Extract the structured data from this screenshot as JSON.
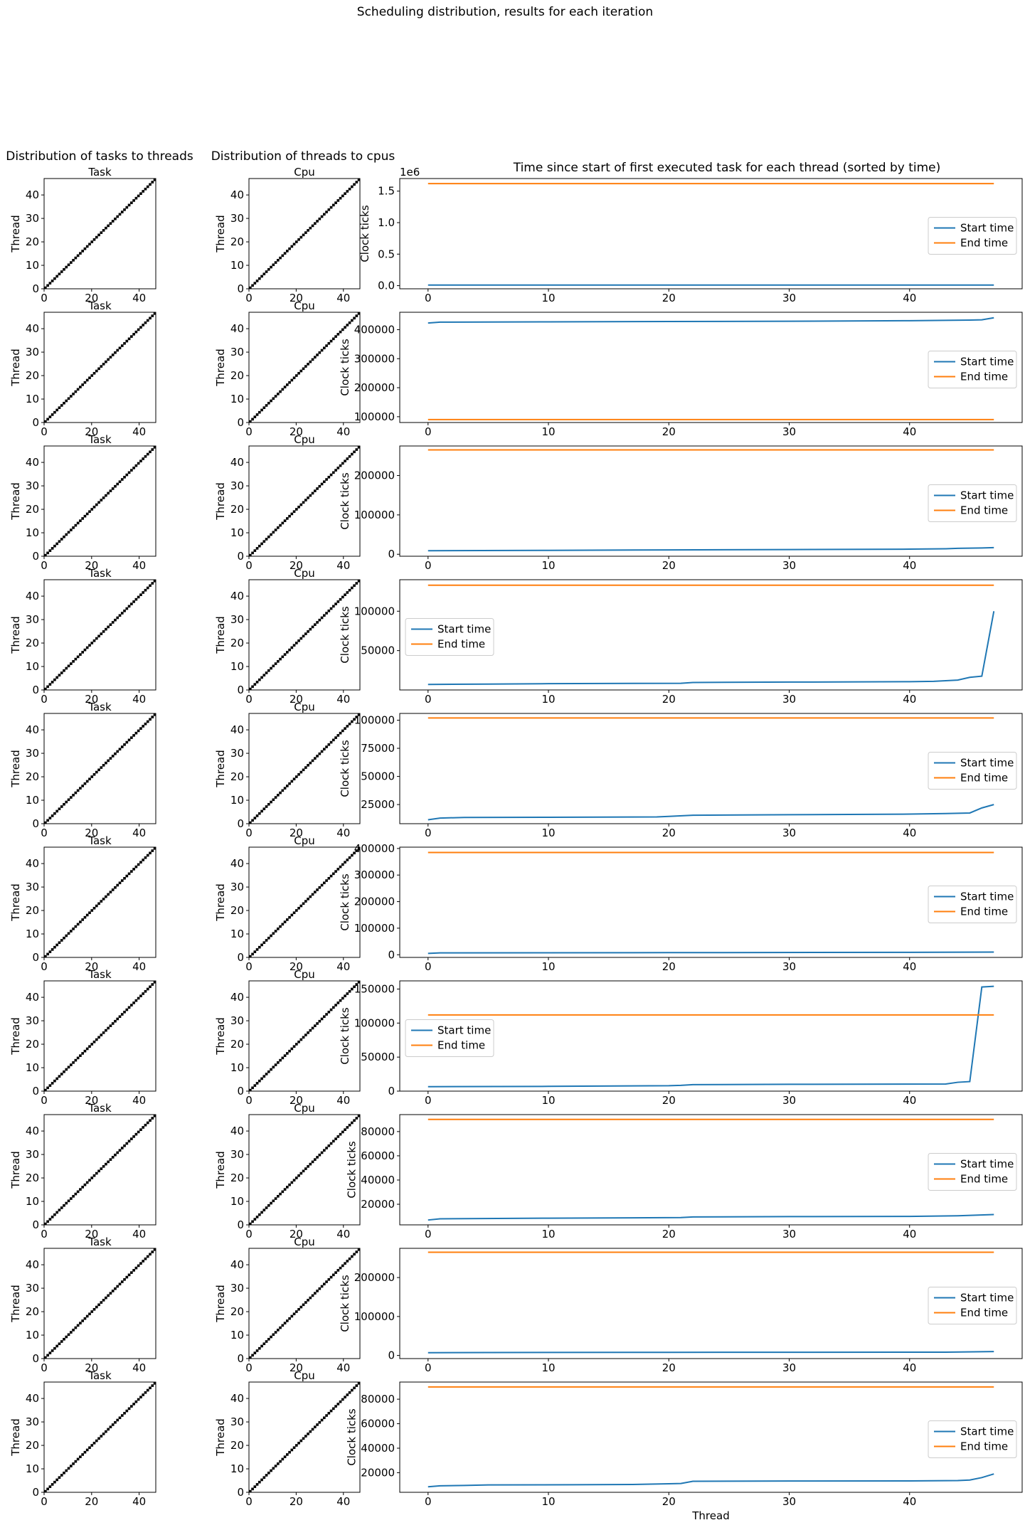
{
  "title": "Scheduling distribution, results for each iteration",
  "column_titles": [
    "Distribution of tasks to threads",
    "Distribution of threads to cpus",
    "Time since start of first executed task for each thread (sorted by time)"
  ],
  "colors": {
    "start": "#1f77b4",
    "end": "#ff7f0e",
    "matrix": "#000000"
  },
  "chart_data": [
    {
      "type": "heatmap",
      "panel": "task-to-thread",
      "title": "Task",
      "ylabel": "Thread",
      "xlim": [
        0,
        47
      ],
      "ylim": [
        0,
        47
      ],
      "xticks": [
        "0",
        "20",
        "40"
      ],
      "yticks": [
        "0",
        "10",
        "20",
        "30",
        "40"
      ],
      "pattern": "identity",
      "rows": 10
    },
    {
      "type": "heatmap",
      "panel": "thread-to-cpu",
      "title": "Cpu",
      "ylabel": "Thread",
      "xlim": [
        0,
        47
      ],
      "ylim": [
        0,
        47
      ],
      "xticks": [
        "0",
        "20",
        "40"
      ],
      "yticks": [
        "0",
        "10",
        "20",
        "30",
        "40"
      ],
      "pattern": "identity",
      "rows": 10
    },
    {
      "type": "line",
      "panel": "thread-times",
      "xlabel": "Thread",
      "ylabel": "Clock ticks",
      "xlim": [
        0,
        47
      ],
      "xticks": [
        "0",
        "10",
        "20",
        "30",
        "40"
      ],
      "rows": [
        {
          "ylim": [
            -50000,
            1700000
          ],
          "yticks": [
            0,
            500000,
            1000000,
            1500000
          ],
          "ytick_labels": [
            "0.0",
            "0.5",
            "1.0",
            "1.5"
          ],
          "offset": "1e6",
          "legend": "center right",
          "series": [
            {
              "name": "Start time",
              "points": [
                [
                  0,
                  10000
                ],
                [
                  47,
                  10000
                ]
              ]
            },
            {
              "name": "End time",
              "points": [
                [
                  0,
                  1620000
                ],
                [
                  47,
                  1620000
                ]
              ]
            }
          ]
        },
        {
          "ylim": [
            80000,
            460000
          ],
          "yticks": [
            100000,
            200000,
            300000,
            400000
          ],
          "ytick_labels": [
            "100000",
            "200000",
            "300000",
            "400000"
          ],
          "legend": "center right",
          "series": [
            {
              "name": "Start time",
              "points": [
                [
                  0,
                  423000
                ],
                [
                  1,
                  426000
                ],
                [
                  10,
                  427000
                ],
                [
                  20,
                  428000
                ],
                [
                  30,
                  429000
                ],
                [
                  40,
                  431000
                ],
                [
                  45,
                  433000
                ],
                [
                  46,
                  434000
                ],
                [
                  47,
                  441000
                ]
              ]
            },
            {
              "name": "End time",
              "points": [
                [
                  0,
                  90000
                ],
                [
                  47,
                  90000
                ]
              ]
            }
          ]
        },
        {
          "ylim": [
            -5000,
            275000
          ],
          "yticks": [
            0,
            100000,
            200000
          ],
          "ytick_labels": [
            "0",
            "100000",
            "200000"
          ],
          "legend": "center right",
          "series": [
            {
              "name": "Start time",
              "points": [
                [
                  0,
                  9000
                ],
                [
                  10,
                  10000
                ],
                [
                  20,
                  11000
                ],
                [
                  30,
                  12000
                ],
                [
                  40,
                  13000
                ],
                [
                  43,
                  14000
                ],
                [
                  44,
                  15000
                ],
                [
                  46,
                  16000
                ],
                [
                  47,
                  17000
                ]
              ]
            },
            {
              "name": "End time",
              "points": [
                [
                  0,
                  265000
                ],
                [
                  47,
                  265000
                ]
              ]
            }
          ]
        },
        {
          "ylim": [
            0,
            140000
          ],
          "yticks": [
            50000,
            100000
          ],
          "ytick_labels": [
            "50000",
            "100000"
          ],
          "legend": "center left",
          "series": [
            {
              "name": "Start time",
              "points": [
                [
                  0,
                  7000
                ],
                [
                  5,
                  7500
                ],
                [
                  10,
                  8000
                ],
                [
                  21,
                  8500
                ],
                [
                  22,
                  9500
                ],
                [
                  30,
                  10000
                ],
                [
                  40,
                  10500
                ],
                [
                  42,
                  11000
                ],
                [
                  44,
                  12500
                ],
                [
                  45,
                  16000
                ],
                [
                  46,
                  17500
                ],
                [
                  47,
                  100000
                ]
              ]
            },
            {
              "name": "End time",
              "points": [
                [
                  0,
                  133000
                ],
                [
                  47,
                  133000
                ]
              ]
            }
          ]
        },
        {
          "ylim": [
            8000,
            106000
          ],
          "yticks": [
            25000,
            50000,
            75000,
            100000
          ],
          "ytick_labels": [
            "25000",
            "50000",
            "75000",
            "100000"
          ],
          "legend": "center right",
          "series": [
            {
              "name": "Start time",
              "points": [
                [
                  0,
                  11500
                ],
                [
                  1,
                  13000
                ],
                [
                  3,
                  13500
                ],
                [
                  10,
                  13700
                ],
                [
                  19,
                  14000
                ],
                [
                  20,
                  14500
                ],
                [
                  22,
                  15500
                ],
                [
                  30,
                  16000
                ],
                [
                  40,
                  16500
                ],
                [
                  43,
                  17000
                ],
                [
                  45,
                  17500
                ],
                [
                  46,
                  22000
                ],
                [
                  47,
                  25000
                ]
              ]
            },
            {
              "name": "End time",
              "points": [
                [
                  0,
                  102000
                ],
                [
                  47,
                  102000
                ]
              ]
            }
          ]
        },
        {
          "ylim": [
            -10000,
            405000
          ],
          "yticks": [
            0,
            100000,
            200000,
            300000,
            400000
          ],
          "ytick_labels": [
            "0",
            "100000",
            "200000",
            "300000",
            "400000"
          ],
          "legend": "center right",
          "series": [
            {
              "name": "Start time",
              "points": [
                [
                  0,
                  5000
                ],
                [
                  1,
                  7000
                ],
                [
                  20,
                  8000
                ],
                [
                  40,
                  9000
                ],
                [
                  47,
                  10000
                ]
              ]
            },
            {
              "name": "End time",
              "points": [
                [
                  0,
                  385000
                ],
                [
                  47,
                  385000
                ]
              ]
            }
          ]
        },
        {
          "ylim": [
            0,
            162000
          ],
          "yticks": [
            0,
            50000,
            100000,
            150000
          ],
          "ytick_labels": [
            "0",
            "50000",
            "100000",
            "150000"
          ],
          "legend": "center left",
          "series": [
            {
              "name": "Start time",
              "points": [
                [
                  0,
                  6500
                ],
                [
                  10,
                  7000
                ],
                [
                  20,
                  8000
                ],
                [
                  21,
                  8500
                ],
                [
                  22,
                  9500
                ],
                [
                  30,
                  10000
                ],
                [
                  43,
                  10500
                ],
                [
                  44,
                  13000
                ],
                [
                  45,
                  14000
                ],
                [
                  46,
                  153000
                ],
                [
                  47,
                  154000
                ]
              ]
            },
            {
              "name": "End time",
              "points": [
                [
                  0,
                  112000
                ],
                [
                  47,
                  112000
                ]
              ]
            }
          ]
        },
        {
          "ylim": [
            3000,
            94000
          ],
          "yticks": [
            20000,
            40000,
            60000,
            80000
          ],
          "ytick_labels": [
            "20000",
            "40000",
            "60000",
            "80000"
          ],
          "legend": "center right",
          "series": [
            {
              "name": "Start time",
              "points": [
                [
                  0,
                  7000
                ],
                [
                  1,
                  8000
                ],
                [
                  10,
                  8500
                ],
                [
                  21,
                  9000
                ],
                [
                  22,
                  9500
                ],
                [
                  30,
                  9800
                ],
                [
                  40,
                  10000
                ],
                [
                  44,
                  10500
                ],
                [
                  47,
                  11500
                ]
              ]
            },
            {
              "name": "End time",
              "points": [
                [
                  0,
                  90000
                ],
                [
                  47,
                  90000
                ]
              ]
            }
          ]
        },
        {
          "ylim": [
            -8000,
            275000
          ],
          "yticks": [
            0,
            100000,
            200000
          ],
          "ytick_labels": [
            "0",
            "100000",
            "200000"
          ],
          "legend": "center right",
          "series": [
            {
              "name": "Start time",
              "points": [
                [
                  0,
                  7000
                ],
                [
                  5,
                  7500
                ],
                [
                  20,
                  8000
                ],
                [
                  43,
                  8500
                ],
                [
                  47,
                  10000
                ]
              ]
            },
            {
              "name": "End time",
              "points": [
                [
                  0,
                  265000
                ],
                [
                  47,
                  265000
                ]
              ]
            }
          ]
        },
        {
          "ylim": [
            4000,
            94000
          ],
          "yticks": [
            20000,
            40000,
            60000,
            80000
          ],
          "ytick_labels": [
            "20000",
            "40000",
            "60000",
            "80000"
          ],
          "legend": "center right",
          "series": [
            {
              "name": "Start time",
              "points": [
                [
                  0,
                  8500
                ],
                [
                  1,
                  9300
                ],
                [
                  3,
                  9600
                ],
                [
                  5,
                  10000
                ],
                [
                  12,
                  10200
                ],
                [
                  17,
                  10400
                ],
                [
                  20,
                  11000
                ],
                [
                  21,
                  11200
                ],
                [
                  22,
                  13000
                ],
                [
                  30,
                  13200
                ],
                [
                  40,
                  13300
                ],
                [
                  44,
                  13600
                ],
                [
                  45,
                  14000
                ],
                [
                  46,
                  16000
                ],
                [
                  47,
                  19000
                ]
              ]
            },
            {
              "name": "End time",
              "points": [
                [
                  0,
                  90000
                ],
                [
                  47,
                  90000
                ]
              ]
            }
          ]
        }
      ]
    }
  ]
}
